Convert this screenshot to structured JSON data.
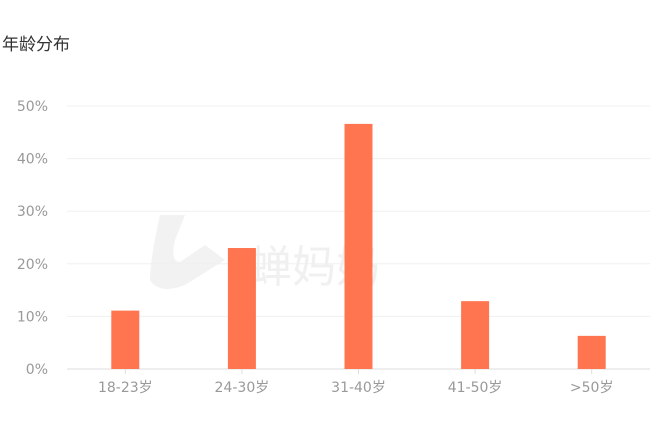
{
  "chart_data": {
    "type": "bar",
    "title": "年龄分布",
    "categories": [
      "18-23岁",
      "24-30岁",
      "31-40岁",
      "41-50岁",
      ">50岁"
    ],
    "values": [
      11.1,
      23.0,
      46.6,
      12.9,
      6.3
    ],
    "y_ticks": [
      "0%",
      "10%",
      "20%",
      "30%",
      "40%",
      "50%"
    ],
    "ylim": [
      0,
      50
    ],
    "xlabel": "",
    "ylabel": "",
    "grid": true,
    "bar_color": "#ff7550",
    "watermark": "蝉妈妈"
  }
}
